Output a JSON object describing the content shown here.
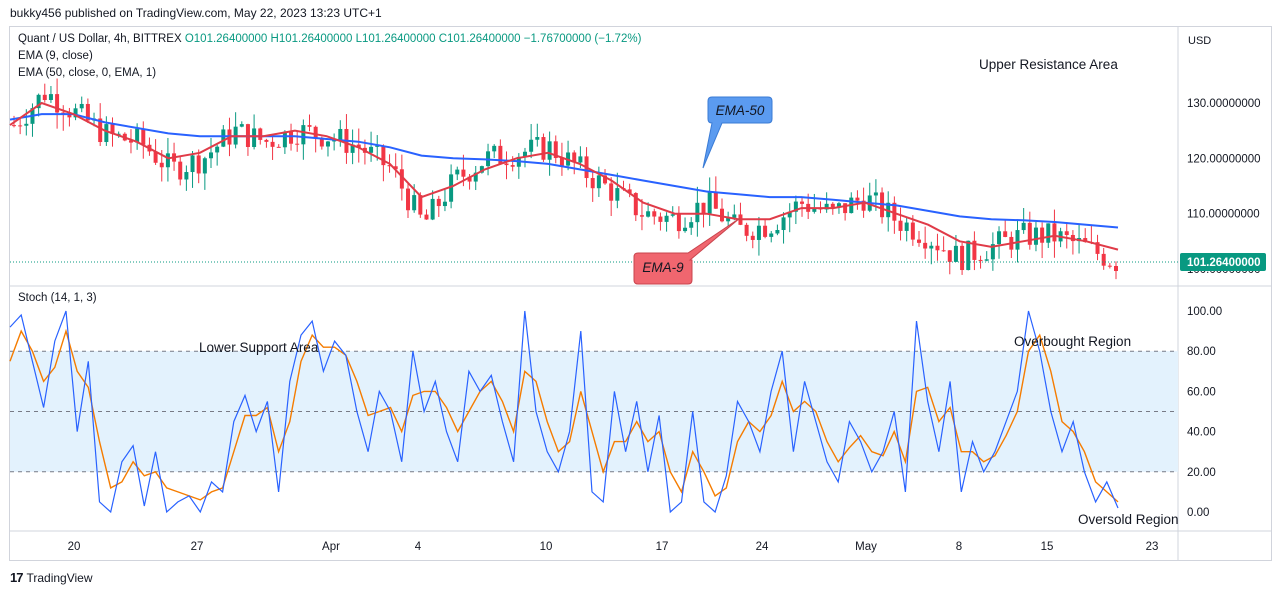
{
  "publisher": "bukky456 published on TradingView.com, May 22, 2023 13:23 UTC+1",
  "legend": {
    "symbol": "Quant / US Dollar, 4h, BITTREX",
    "ohlc": "O101.26400000 H101.26400000 L101.26400000 C101.26400000 −1.76700000 (−1.72%)",
    "ema9": "EMA (9, close)",
    "ema50": "EMA (50, close, 0, EMA, 1)"
  },
  "stoch_label": "Stoch (14, 1, 3)",
  "currency": "USD",
  "branding": "TradingView",
  "annotations": {
    "upper_resistance": "Upper Resistance Area",
    "lower_support": "Lower Support Area",
    "overbought": "Overbought Region",
    "oversold": "Oversold Region",
    "ema50_callout": "EMA-50",
    "ema9_callout": "EMA-9"
  },
  "colors": {
    "bull": "#089981",
    "bear": "#f23645",
    "ema9": "#e03b48",
    "ema50": "#2962ff",
    "stoch_k": "#2962ff",
    "stoch_d": "#f57c00",
    "band": "#e3f2fd",
    "ema50_callout_bg": "#5b9bf0",
    "ema9_callout_bg": "#f0666f",
    "price_tag": "#089981"
  },
  "chart_data": [
    {
      "type": "candlestick",
      "title": "Quant / US Dollar, 4h, BITTREX",
      "ylabel": "USD",
      "ylim": [
        100,
        140
      ],
      "y_ticks": [
        "130.00000000",
        "120.00000000",
        "110.00000000",
        "100.00000000"
      ],
      "x_ticks": [
        "20",
        "27",
        "Apr",
        "4",
        "10",
        "17",
        "24",
        "May",
        "8",
        "15",
        "23"
      ],
      "last_price": "101.26400000",
      "approx_close_path": [
        126,
        132,
        128,
        124,
        123,
        118,
        120,
        125,
        123,
        125,
        124,
        122,
        118,
        108,
        116,
        120,
        121,
        122,
        118,
        114,
        110,
        109,
        112,
        107,
        108,
        112,
        110,
        113,
        109,
        106,
        102,
        104,
        106,
        106,
        104,
        101.3
      ],
      "ema9_path": [
        126,
        130,
        128,
        125,
        123,
        120,
        121,
        124,
        124,
        125,
        124,
        122,
        119,
        113,
        115,
        118,
        120,
        121,
        119,
        116,
        112,
        110,
        110,
        109,
        109,
        111,
        111,
        112,
        110,
        108,
        105,
        104,
        105,
        106,
        105,
        103.5
      ],
      "ema50_path": [
        127,
        128,
        128,
        126.5,
        125.5,
        124.5,
        124,
        124,
        124,
        124,
        123.5,
        123,
        122,
        120.5,
        120,
        119.8,
        119.5,
        119,
        118,
        117,
        116,
        115,
        114,
        113.5,
        113,
        113,
        112.5,
        112,
        111.5,
        110.5,
        109.5,
        109,
        108.8,
        108.5,
        108,
        107.5
      ]
    },
    {
      "type": "line",
      "title": "Stoch (14, 1, 3)",
      "ylim": [
        0,
        100
      ],
      "y_ticks": [
        "100.00",
        "80.00",
        "60.00",
        "40.00",
        "20.00",
        "0.00"
      ],
      "levels": [
        80,
        50,
        20
      ],
      "series": [
        {
          "values": [
            92,
            98,
            75,
            52,
            85,
            100,
            40,
            75,
            5,
            0,
            25,
            33,
            3,
            30,
            0,
            5,
            8,
            0,
            15,
            10,
            45,
            58,
            40,
            55,
            10,
            65,
            88,
            95,
            70,
            85,
            78,
            50,
            30,
            60,
            50,
            25,
            80,
            50,
            65,
            40,
            25,
            70,
            60,
            68,
            45,
            25,
            100,
            50,
            30,
            20,
            40,
            90,
            10,
            5,
            60,
            30,
            55,
            20,
            48,
            0,
            5,
            50,
            5,
            0,
            18,
            55,
            45,
            30,
            60,
            80,
            30,
            65,
            45,
            25,
            15,
            45,
            35,
            20,
            30,
            50,
            10,
            95,
            55,
            30,
            65,
            10,
            35,
            20,
            30,
            45,
            60,
            100,
            80,
            50,
            30,
            45,
            20,
            5,
            15,
            2
          ]
        },
        {
          "values": [
            75,
            90,
            80,
            65,
            72,
            90,
            70,
            62,
            35,
            12,
            15,
            25,
            18,
            20,
            12,
            10,
            8,
            6,
            10,
            12,
            30,
            48,
            48,
            52,
            30,
            45,
            75,
            88,
            82,
            82,
            78,
            65,
            48,
            50,
            52,
            40,
            58,
            60,
            60,
            52,
            40,
            50,
            60,
            65,
            55,
            40,
            70,
            65,
            45,
            30,
            35,
            60,
            40,
            20,
            35,
            35,
            45,
            35,
            40,
            20,
            10,
            30,
            20,
            8,
            12,
            35,
            45,
            40,
            48,
            65,
            50,
            55,
            50,
            35,
            25,
            32,
            38,
            30,
            28,
            40,
            25,
            60,
            62,
            45,
            52,
            30,
            30,
            25,
            28,
            38,
            50,
            80,
            88,
            70,
            45,
            40,
            30,
            15,
            10,
            5
          ]
        }
      ]
    }
  ]
}
